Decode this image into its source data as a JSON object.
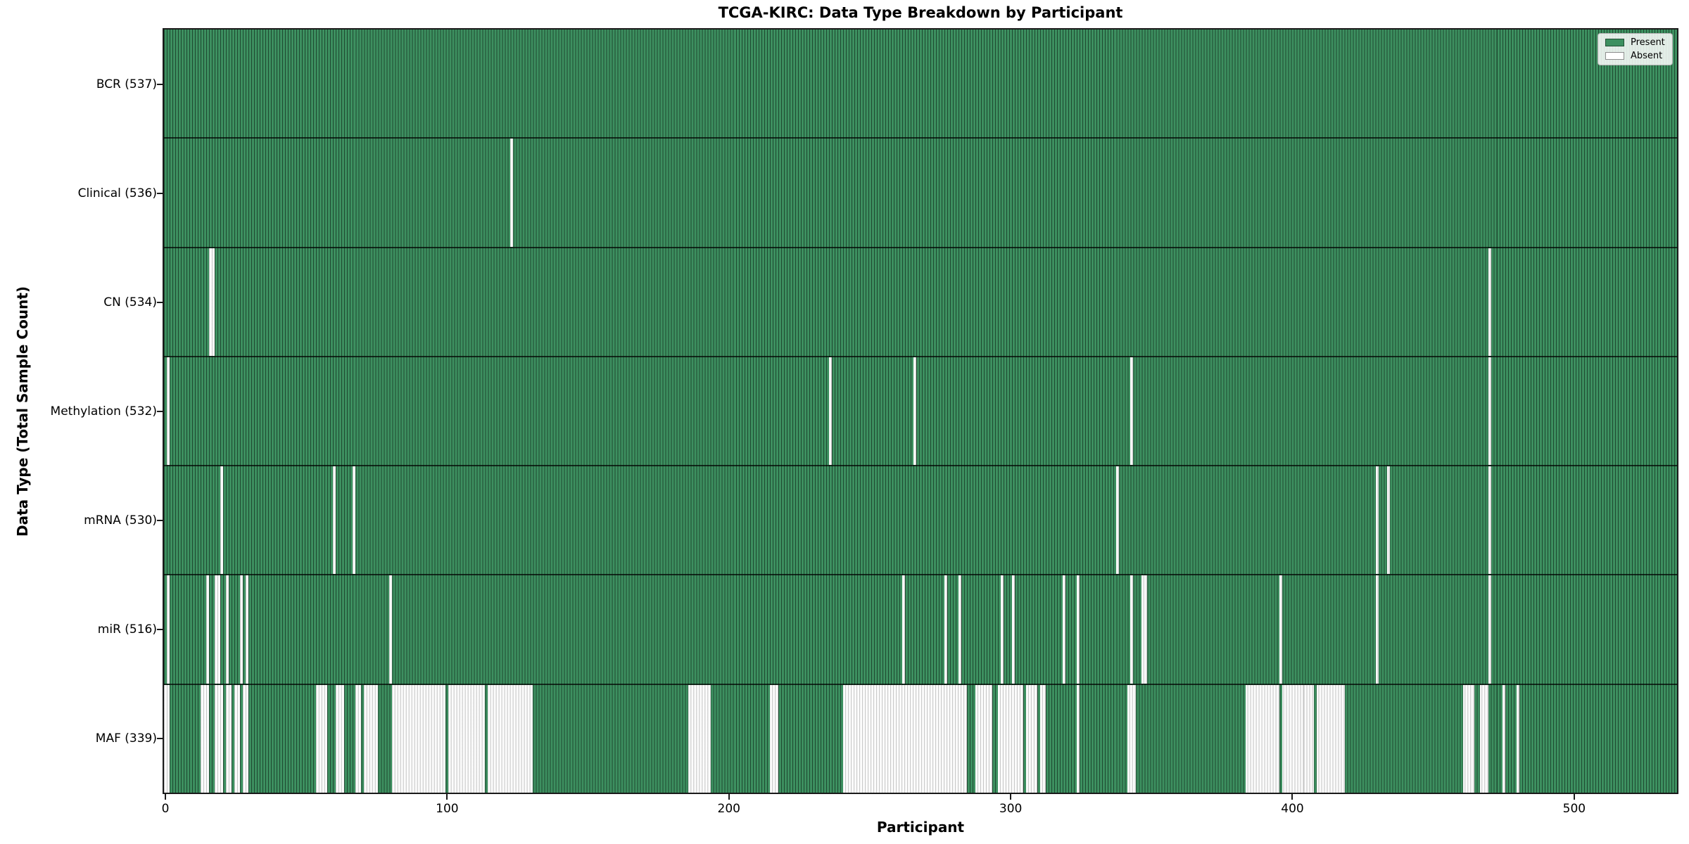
{
  "chart_data": {
    "type": "heatmap",
    "title": "TCGA-KIRC: Data Type Breakdown by Participant",
    "xlabel": "Participant",
    "ylabel": "Data Type (Total Sample Count)",
    "x_ticks": [
      0,
      100,
      200,
      300,
      400,
      500
    ],
    "x_range": [
      -0.5,
      536.5
    ],
    "n_participants": 537,
    "grid": false,
    "legend_position": "upper right",
    "cell_values": "1 = Present (green), 0 = Absent (white)",
    "rows": [
      {
        "data_type": "BCR",
        "total": 537,
        "label": "BCR (537)",
        "absent_ranges": []
      },
      {
        "data_type": "Clinical",
        "total": 536,
        "label": "Clinical (536)",
        "absent_ranges": [
          [
            123,
            123
          ]
        ]
      },
      {
        "data_type": "CN",
        "total": 534,
        "label": "CN (534)",
        "absent_ranges": [
          [
            16,
            17
          ],
          [
            470,
            470
          ]
        ]
      },
      {
        "data_type": "Methylation",
        "total": 532,
        "label": "Methylation (532)",
        "absent_ranges": [
          [
            1,
            1
          ],
          [
            236,
            236
          ],
          [
            266,
            266
          ],
          [
            343,
            343
          ],
          [
            470,
            470
          ]
        ]
      },
      {
        "data_type": "mRNA",
        "total": 530,
        "label": "mRNA (530)",
        "absent_ranges": [
          [
            20,
            20
          ],
          [
            60,
            60
          ],
          [
            67,
            67
          ],
          [
            338,
            338
          ],
          [
            430,
            430
          ],
          [
            434,
            434
          ],
          [
            470,
            470
          ]
        ]
      },
      {
        "data_type": "miR",
        "total": 516,
        "label": "miR (516)",
        "absent_ranges": [
          [
            1,
            1
          ],
          [
            15,
            15
          ],
          [
            18,
            19
          ],
          [
            22,
            22
          ],
          [
            27,
            27
          ],
          [
            29,
            29
          ],
          [
            80,
            80
          ],
          [
            262,
            262
          ],
          [
            277,
            277
          ],
          [
            282,
            282
          ],
          [
            297,
            297
          ],
          [
            301,
            301
          ],
          [
            319,
            319
          ],
          [
            324,
            324
          ],
          [
            343,
            343
          ],
          [
            347,
            348
          ],
          [
            396,
            396
          ],
          [
            430,
            430
          ],
          [
            470,
            470
          ]
        ]
      },
      {
        "data_type": "MAF",
        "total": 339,
        "label": "MAF (339)",
        "absent_ranges": [
          [
            0,
            1
          ],
          [
            13,
            15
          ],
          [
            18,
            20
          ],
          [
            22,
            23
          ],
          [
            25,
            26
          ],
          [
            28,
            29
          ],
          [
            54,
            57
          ],
          [
            61,
            63
          ],
          [
            68,
            69
          ],
          [
            71,
            75
          ],
          [
            81,
            99
          ],
          [
            101,
            113
          ],
          [
            115,
            130
          ],
          [
            186,
            193
          ],
          [
            215,
            217
          ],
          [
            241,
            284
          ],
          [
            288,
            293
          ],
          [
            296,
            304
          ],
          [
            306,
            309
          ],
          [
            311,
            312
          ],
          [
            324,
            324
          ],
          [
            342,
            344
          ],
          [
            384,
            395
          ],
          [
            397,
            407
          ],
          [
            409,
            418
          ],
          [
            461,
            464
          ],
          [
            467,
            469
          ],
          [
            475,
            475
          ],
          [
            480,
            480
          ]
        ]
      }
    ],
    "colors": {
      "present": "#3d9060",
      "absent": "#fcfcfc",
      "bar_edge": "rgba(0,0,0,0.5)",
      "absent_edge": "rgba(125,125,125,0.45)",
      "row_divider": "rgba(0,0,0,0.7)",
      "spine": "#1a1a1a"
    }
  },
  "legend": {
    "items": [
      {
        "label": "Present",
        "color": "#3d9060"
      },
      {
        "label": "Absent",
        "color": "#ffffff"
      }
    ]
  }
}
